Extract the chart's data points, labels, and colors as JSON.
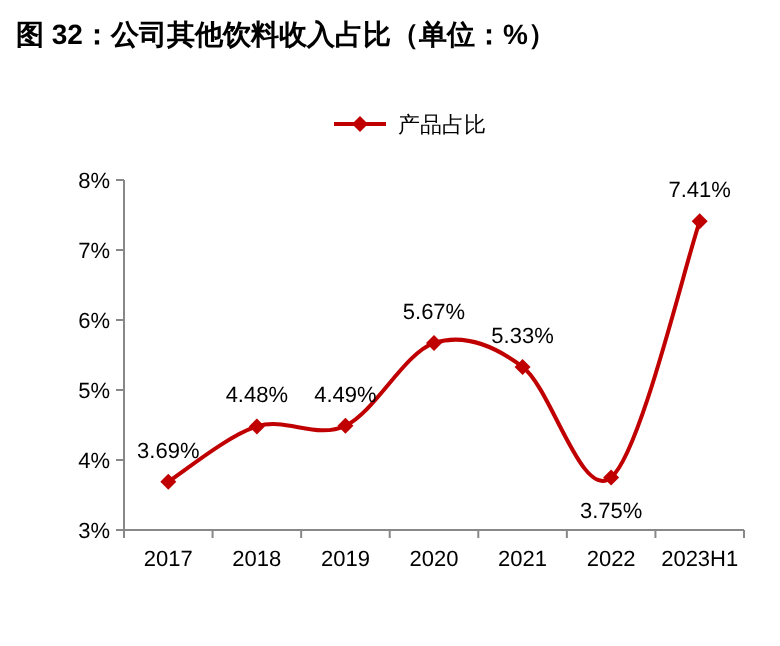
{
  "chart_data": {
    "type": "line",
    "title": "图 32：公司其他饮料收入占比（单位：%）",
    "categories": [
      "2017",
      "2018",
      "2019",
      "2020",
      "2021",
      "2022",
      "2023H1"
    ],
    "series": [
      {
        "name": "产品占比",
        "color": "#c00000",
        "values": [
          3.69,
          4.48,
          4.49,
          5.67,
          5.33,
          3.75,
          7.41
        ]
      }
    ],
    "value_labels": [
      "3.69%",
      "4.48%",
      "4.49%",
      "5.67%",
      "5.33%",
      "3.75%",
      "7.41%"
    ],
    "ylim": [
      3,
      8
    ],
    "yticks": [
      {
        "value": 3,
        "label": "3%"
      },
      {
        "value": 4,
        "label": "4%"
      },
      {
        "value": 5,
        "label": "5%"
      },
      {
        "value": 6,
        "label": "6%"
      },
      {
        "value": 7,
        "label": "7%"
      },
      {
        "value": 8,
        "label": "8%"
      }
    ],
    "legend": "top",
    "marker": "diamond",
    "line_style": "solid"
  }
}
